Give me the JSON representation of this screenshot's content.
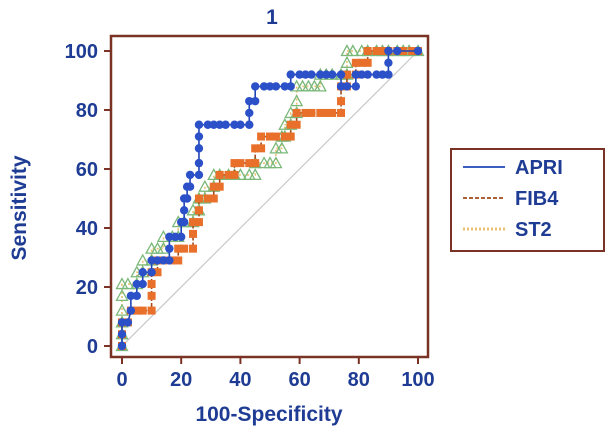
{
  "chart_data": {
    "type": "line",
    "title": "1",
    "xlabel": "100-Specificity",
    "ylabel": "Sensitivity",
    "xlim": [
      0,
      100
    ],
    "ylim": [
      0,
      100
    ],
    "xticks": [
      0,
      20,
      40,
      60,
      80,
      100
    ],
    "yticks": [
      0,
      20,
      40,
      60,
      80,
      100
    ],
    "grid": false,
    "legend_position": "right",
    "diagonal_reference": [
      [
        0,
        0
      ],
      [
        100,
        100
      ]
    ],
    "series": [
      {
        "name": "APRI",
        "color": "#1f44b8",
        "marker": "circle",
        "marker_color": "#2b50c8",
        "line_style": "solid",
        "points": [
          [
            0,
            0
          ],
          [
            0,
            4
          ],
          [
            0,
            8
          ],
          [
            2,
            8
          ],
          [
            3,
            12
          ],
          [
            3,
            17
          ],
          [
            5,
            17
          ],
          [
            5,
            21
          ],
          [
            7,
            21
          ],
          [
            7,
            25
          ],
          [
            10,
            25
          ],
          [
            10,
            29
          ],
          [
            12,
            29
          ],
          [
            14,
            29
          ],
          [
            16,
            29
          ],
          [
            16,
            33
          ],
          [
            16,
            37
          ],
          [
            18,
            37
          ],
          [
            20,
            37
          ],
          [
            20,
            42
          ],
          [
            21,
            42
          ],
          [
            21,
            46
          ],
          [
            21,
            50
          ],
          [
            22,
            50
          ],
          [
            22,
            54
          ],
          [
            23,
            54
          ],
          [
            23,
            58
          ],
          [
            26,
            58
          ],
          [
            26,
            62
          ],
          [
            26,
            67
          ],
          [
            26,
            71
          ],
          [
            26,
            75
          ],
          [
            29,
            75
          ],
          [
            31,
            75
          ],
          [
            33,
            75
          ],
          [
            35,
            75
          ],
          [
            38,
            75
          ],
          [
            40,
            75
          ],
          [
            43,
            75
          ],
          [
            43,
            79
          ],
          [
            43,
            83
          ],
          [
            45,
            83
          ],
          [
            45,
            88
          ],
          [
            48,
            88
          ],
          [
            50,
            88
          ],
          [
            52,
            88
          ],
          [
            55,
            88
          ],
          [
            57,
            88
          ],
          [
            57,
            92
          ],
          [
            60,
            92
          ],
          [
            62,
            92
          ],
          [
            64,
            92
          ],
          [
            67,
            92
          ],
          [
            69,
            92
          ],
          [
            71,
            92
          ],
          [
            74,
            92
          ],
          [
            74,
            88
          ],
          [
            76,
            88
          ],
          [
            79,
            88
          ],
          [
            79,
            92
          ],
          [
            81,
            92
          ],
          [
            83,
            92
          ],
          [
            86,
            92
          ],
          [
            88,
            92
          ],
          [
            90,
            92
          ],
          [
            90,
            96
          ],
          [
            90,
            100
          ],
          [
            93,
            100
          ],
          [
            100,
            100
          ]
        ]
      },
      {
        "name": "FIB4",
        "color": "#a04a1a",
        "marker": "square",
        "marker_color": "#e8702a",
        "line_style": "dashed",
        "points": [
          [
            0,
            0
          ],
          [
            0,
            4
          ],
          [
            0,
            8
          ],
          [
            2,
            8
          ],
          [
            3,
            12
          ],
          [
            5,
            12
          ],
          [
            7,
            12
          ],
          [
            10,
            12
          ],
          [
            10,
            17
          ],
          [
            10,
            21
          ],
          [
            10,
            25
          ],
          [
            12,
            25
          ],
          [
            12,
            29
          ],
          [
            14,
            29
          ],
          [
            17,
            29
          ],
          [
            19,
            29
          ],
          [
            19,
            33
          ],
          [
            21,
            33
          ],
          [
            24,
            33
          ],
          [
            24,
            38
          ],
          [
            24,
            42
          ],
          [
            26,
            42
          ],
          [
            26,
            46
          ],
          [
            26,
            50
          ],
          [
            29,
            50
          ],
          [
            31,
            50
          ],
          [
            31,
            54
          ],
          [
            33,
            54
          ],
          [
            33,
            58
          ],
          [
            36,
            58
          ],
          [
            38,
            58
          ],
          [
            38,
            62
          ],
          [
            40,
            62
          ],
          [
            43,
            62
          ],
          [
            45,
            62
          ],
          [
            45,
            67
          ],
          [
            47,
            67
          ],
          [
            47,
            71
          ],
          [
            50,
            71
          ],
          [
            52,
            71
          ],
          [
            55,
            71
          ],
          [
            57,
            71
          ],
          [
            57,
            75
          ],
          [
            59,
            75
          ],
          [
            59,
            79
          ],
          [
            62,
            79
          ],
          [
            64,
            79
          ],
          [
            67,
            79
          ],
          [
            69,
            79
          ],
          [
            71,
            79
          ],
          [
            74,
            79
          ],
          [
            74,
            83
          ],
          [
            74,
            88
          ],
          [
            76,
            88
          ],
          [
            76,
            92
          ],
          [
            79,
            92
          ],
          [
            79,
            96
          ],
          [
            81,
            96
          ],
          [
            83,
            96
          ],
          [
            83,
            100
          ],
          [
            86,
            100
          ],
          [
            88,
            100
          ],
          [
            90,
            100
          ],
          [
            93,
            100
          ],
          [
            95,
            100
          ],
          [
            98,
            100
          ],
          [
            100,
            100
          ]
        ]
      },
      {
        "name": "ST2",
        "color": "#e8c070",
        "marker": "triangle",
        "marker_color": "#7ab87a",
        "line_style": "dotted",
        "points": [
          [
            0,
            0
          ],
          [
            0,
            4
          ],
          [
            0,
            8
          ],
          [
            0,
            12
          ],
          [
            0,
            17
          ],
          [
            0,
            21
          ],
          [
            2,
            21
          ],
          [
            5,
            21
          ],
          [
            5,
            25
          ],
          [
            7,
            25
          ],
          [
            7,
            29
          ],
          [
            10,
            29
          ],
          [
            10,
            33
          ],
          [
            12,
            33
          ],
          [
            14,
            33
          ],
          [
            14,
            37
          ],
          [
            17,
            37
          ],
          [
            19,
            37
          ],
          [
            19,
            42
          ],
          [
            21,
            42
          ],
          [
            24,
            42
          ],
          [
            24,
            46
          ],
          [
            26,
            46
          ],
          [
            26,
            50
          ],
          [
            28,
            50
          ],
          [
            28,
            54
          ],
          [
            31,
            54
          ],
          [
            31,
            58
          ],
          [
            33,
            58
          ],
          [
            36,
            58
          ],
          [
            38,
            58
          ],
          [
            40,
            58
          ],
          [
            43,
            58
          ],
          [
            45,
            58
          ],
          [
            45,
            62
          ],
          [
            48,
            62
          ],
          [
            50,
            62
          ],
          [
            52,
            62
          ],
          [
            52,
            67
          ],
          [
            54,
            67
          ],
          [
            54,
            71
          ],
          [
            55,
            71
          ],
          [
            55,
            75
          ],
          [
            57,
            75
          ],
          [
            57,
            79
          ],
          [
            59,
            79
          ],
          [
            59,
            83
          ],
          [
            59,
            88
          ],
          [
            61,
            88
          ],
          [
            63,
            88
          ],
          [
            65,
            88
          ],
          [
            67,
            88
          ],
          [
            67,
            92
          ],
          [
            69,
            92
          ],
          [
            71,
            92
          ],
          [
            74,
            92
          ],
          [
            76,
            92
          ],
          [
            76,
            96
          ],
          [
            76,
            100
          ],
          [
            78,
            100
          ],
          [
            81,
            100
          ],
          [
            83,
            100
          ],
          [
            86,
            100
          ],
          [
            88,
            100
          ],
          [
            90,
            100
          ],
          [
            93,
            100
          ],
          [
            95,
            100
          ],
          [
            97,
            100
          ],
          [
            100,
            100
          ]
        ]
      }
    ]
  }
}
